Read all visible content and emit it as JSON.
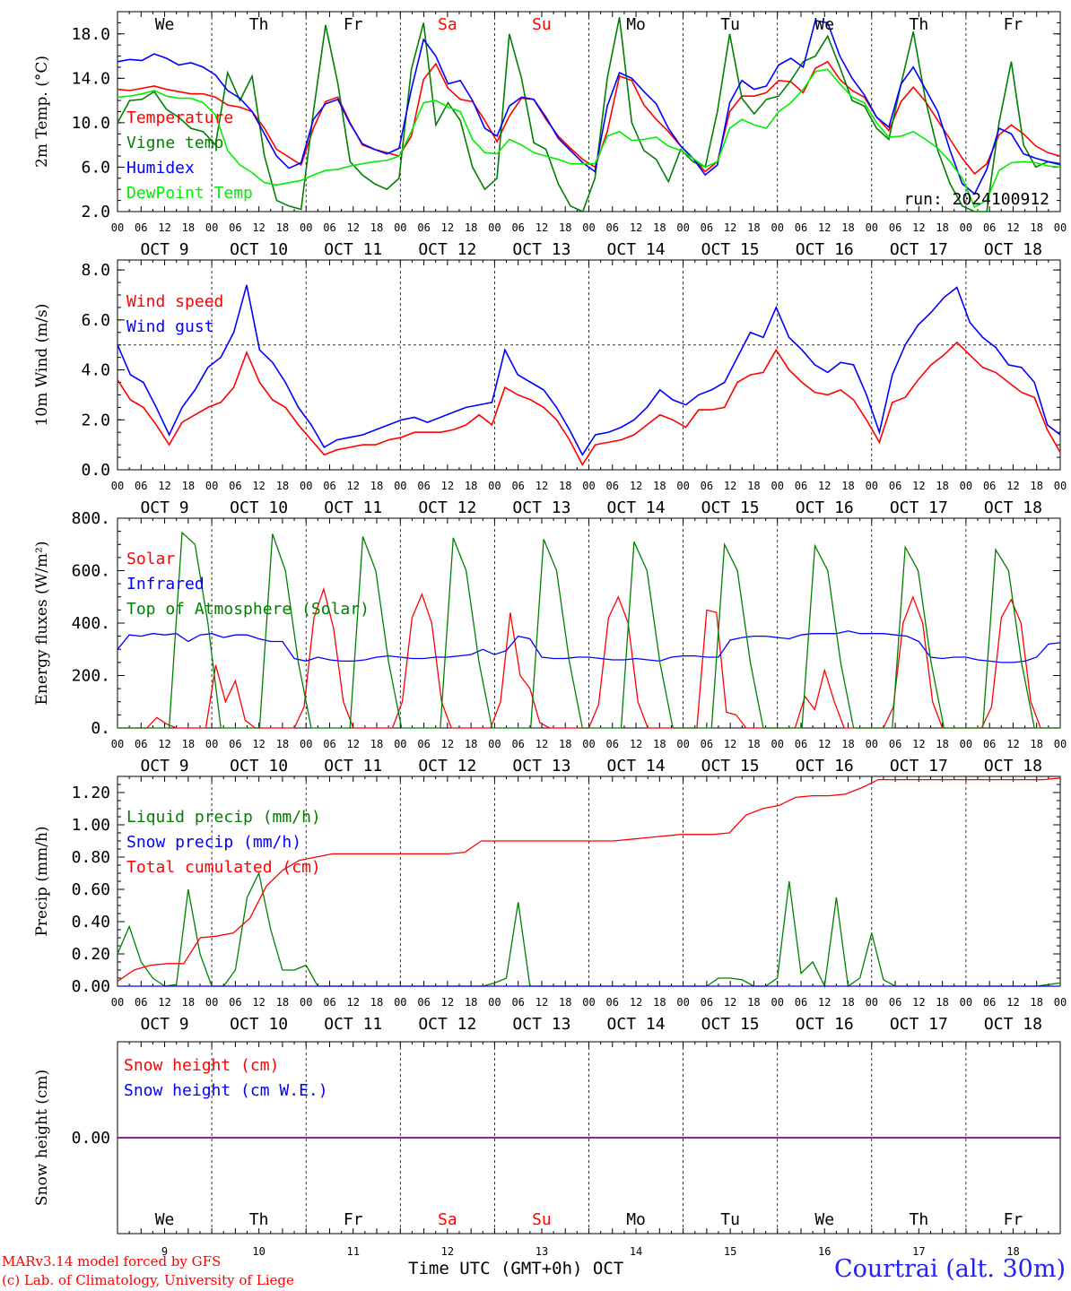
{
  "chart_data": [
    {
      "type": "line",
      "ylabel": "2m Temp. (°C)",
      "ylim": [
        2,
        20
      ],
      "yticks": [
        "2.0",
        "6.0",
        "10.0",
        "14.0",
        "18.0"
      ],
      "run_label": "run: 2024100912",
      "series": [
        {
          "name": "Temperature",
          "color": "#ff0000",
          "values": [
            13,
            12.9,
            13.1,
            13.3,
            13,
            12.8,
            12.6,
            12.6,
            12.3,
            11.6,
            11.4,
            11,
            9.5,
            7.6,
            6.9,
            6.2,
            9.5,
            11.9,
            12.3,
            10,
            8,
            7.6,
            7.3,
            7,
            8.8,
            13.9,
            15.3,
            13.1,
            12.1,
            11.9,
            10.2,
            8.3,
            10.6,
            12.2,
            12.1,
            10.3,
            8.8,
            7.7,
            6.7,
            6,
            9.2,
            14.2,
            13.8,
            11.6,
            10.3,
            9.2,
            7.9,
            6.8,
            5.6,
            6.5,
            11,
            12.4,
            12.4,
            12.7,
            13.8,
            13.7,
            12.7,
            14.9,
            15.5,
            13.9,
            12.9,
            12.3,
            10.5,
            9.3,
            11.9,
            13.2,
            11.9,
            10.2,
            8.5,
            6.8,
            5.4,
            6.3,
            8.9,
            9.8,
            9,
            7.9,
            7.3,
            7
          ]
        },
        {
          "name": "Vigne temp",
          "color": "#008000",
          "values": [
            10,
            12,
            12.1,
            12.8,
            11.2,
            10.5,
            9.5,
            9.2,
            8,
            14.5,
            12,
            14.2,
            7,
            3,
            2.5,
            2.2,
            11,
            18.8,
            13.5,
            6.5,
            5.3,
            4.5,
            4,
            5,
            14.8,
            19,
            9.8,
            11.8,
            10.2,
            6,
            4,
            5,
            18,
            14,
            8.2,
            7.6,
            4.5,
            2.5,
            2,
            5,
            14,
            19.5,
            10,
            7.5,
            6.7,
            4.7,
            7.6,
            6.5,
            6,
            11,
            18,
            12.2,
            10.8,
            12.1,
            12.4,
            13.8,
            15.5,
            16,
            17.8,
            15,
            12,
            11.5,
            9.5,
            8.5,
            13.5,
            18.2,
            12,
            7.5,
            4.5,
            2.5,
            2,
            2,
            10,
            15.5,
            8,
            6,
            6.5,
            6.2
          ]
        },
        {
          "name": "Humidex",
          "color": "#0000ff",
          "values": [
            15.5,
            15.7,
            15.6,
            16.2,
            15.8,
            15.2,
            15.4,
            15,
            14.3,
            12.9,
            12.2,
            11,
            9,
            7,
            5.9,
            6.4,
            10.3,
            11.7,
            12.1,
            9.9,
            8.1,
            7.6,
            7.2,
            7.7,
            13,
            17.5,
            16,
            13.5,
            13.8,
            12,
            9.5,
            8.8,
            11.5,
            12.3,
            12.1,
            10.5,
            8.6,
            7.5,
            6.4,
            5.6,
            11.5,
            14.5,
            14,
            12.8,
            11.7,
            9.5,
            7.9,
            6.8,
            5.3,
            6.2,
            11.8,
            13.8,
            13,
            13.3,
            15.2,
            15.8,
            15,
            19.2,
            19,
            16,
            14,
            12.5,
            10.5,
            9.6,
            13.5,
            15,
            13,
            11,
            7.5,
            4.5,
            3.6,
            5.8,
            9.5,
            9,
            7.2,
            6.8,
            6.5,
            6.3
          ]
        },
        {
          "name": "DewPoint Temp",
          "color": "#00ee00",
          "values": [
            12.3,
            12.4,
            12.6,
            12.9,
            12.4,
            12.2,
            12.2,
            11.8,
            10.7,
            7.5,
            6.2,
            5.5,
            4.6,
            4.4,
            4.6,
            4.8,
            5.3,
            5.7,
            5.8,
            6.1,
            6.3,
            6.5,
            6.6,
            7,
            9.2,
            11.8,
            12,
            11.4,
            11,
            8.5,
            7.3,
            7.2,
            8.5,
            8,
            7.3,
            7,
            6.7,
            6.3,
            6.3,
            6.3,
            8.8,
            9.2,
            8.4,
            8.5,
            8.7,
            7.9,
            7.5,
            6.8,
            6,
            6.5,
            9.5,
            10.3,
            9.8,
            9.5,
            11,
            11.8,
            13,
            14.6,
            14.8,
            13.5,
            12.3,
            11.8,
            10,
            8.7,
            8.8,
            9.2,
            8.5,
            7.7,
            6.5,
            5,
            2.4,
            3,
            5.7,
            6.4,
            6.5,
            6.4,
            6.1,
            6
          ]
        }
      ]
    },
    {
      "type": "line",
      "ylabel": "10m Wind (m/s)",
      "ylim": [
        0,
        8
      ],
      "yticks": [
        "0.0",
        "2.0",
        "4.0",
        "6.0",
        "8.0"
      ],
      "reference_line": 5,
      "series": [
        {
          "name": "Wind speed",
          "color": "#ff0000",
          "values": [
            3.6,
            2.8,
            2.5,
            1.8,
            1,
            1.9,
            2.2,
            2.5,
            2.7,
            3.3,
            4.7,
            3.5,
            2.8,
            2.5,
            1.8,
            1.2,
            0.6,
            0.8,
            0.9,
            1,
            1,
            1.2,
            1.3,
            1.5,
            1.5,
            1.5,
            1.6,
            1.8,
            2.2,
            1.8,
            3.3,
            3,
            2.8,
            2.5,
            2,
            1.2,
            0.2,
            1,
            1.1,
            1.2,
            1.4,
            1.8,
            2.2,
            2,
            1.7,
            2.4,
            2.4,
            2.5,
            3.5,
            3.8,
            3.9,
            4.8,
            4,
            3.5,
            3.1,
            3,
            3.2,
            2.8,
            2,
            1.1,
            2.7,
            2.9,
            3.6,
            4.2,
            4.6,
            5.1,
            4.6,
            4.1,
            3.9,
            3.5,
            3.1,
            2.9,
            1.6,
            0.7
          ]
        },
        {
          "name": "Wind gust",
          "color": "#0000ff",
          "values": [
            5,
            3.8,
            3.5,
            2.5,
            1.4,
            2.5,
            3.2,
            4.1,
            4.5,
            5.5,
            7.4,
            4.8,
            4.3,
            3.5,
            2.5,
            1.8,
            0.9,
            1.2,
            1.3,
            1.4,
            1.6,
            1.8,
            2,
            2.1,
            1.9,
            2.1,
            2.3,
            2.5,
            2.6,
            2.7,
            4.8,
            3.8,
            3.5,
            3.2,
            2.5,
            1.6,
            0.6,
            1.4,
            1.5,
            1.7,
            2,
            2.5,
            3.2,
            2.8,
            2.6,
            3,
            3.2,
            3.5,
            4.5,
            5.5,
            5.3,
            6.5,
            5.3,
            4.8,
            4.2,
            3.9,
            4.3,
            4.2,
            3,
            1.5,
            3.8,
            5,
            5.8,
            6.3,
            6.9,
            7.3,
            5.9,
            5.3,
            4.9,
            4.2,
            4.1,
            3.5,
            1.8,
            1.4
          ]
        }
      ]
    },
    {
      "type": "line",
      "ylabel": "Energy fluxes (W/m²)",
      "ylim": [
        0,
        800
      ],
      "yticks": [
        "0.",
        "200.",
        "400.",
        "600.",
        "800."
      ],
      "series": [
        {
          "name": "Solar",
          "color": "#ff0000",
          "values": [
            0,
            0,
            0,
            0,
            40,
            15,
            0,
            0,
            0,
            0,
            240,
            100,
            180,
            30,
            0,
            0,
            0,
            0,
            0,
            80,
            420,
            530,
            380,
            100,
            0,
            0,
            0,
            0,
            0,
            100,
            420,
            510,
            400,
            100,
            0,
            0,
            0,
            0,
            0,
            100,
            440,
            200,
            150,
            20,
            0,
            0,
            0,
            0,
            0,
            90,
            420,
            500,
            400,
            100,
            0,
            0,
            0,
            0,
            0,
            0,
            450,
            440,
            60,
            50,
            0,
            0,
            0,
            0,
            0,
            0,
            120,
            70,
            220,
            100,
            0,
            0,
            0,
            0,
            0,
            80,
            400,
            500,
            400,
            100,
            0,
            0,
            0,
            0,
            0,
            80,
            420,
            490,
            400,
            100,
            0,
            0,
            0
          ]
        },
        {
          "name": "Infrared",
          "color": "#0000ff",
          "values": [
            300,
            355,
            350,
            360,
            355,
            360,
            330,
            355,
            360,
            345,
            355,
            355,
            340,
            330,
            330,
            265,
            255,
            270,
            260,
            255,
            255,
            260,
            270,
            275,
            270,
            265,
            265,
            270,
            270,
            275,
            280,
            300,
            280,
            295,
            350,
            340,
            270,
            265,
            265,
            270,
            270,
            265,
            260,
            260,
            265,
            260,
            255,
            270,
            275,
            275,
            270,
            270,
            335,
            345,
            350,
            350,
            345,
            340,
            355,
            360,
            360,
            360,
            370,
            360,
            360,
            360,
            355,
            350,
            330,
            270,
            265,
            270,
            270,
            260,
            255,
            250,
            250,
            255,
            270,
            320,
            325
          ]
        },
        {
          "name": "Top of Atmosphere (Solar)",
          "color": "#008000",
          "values": [
            0,
            0,
            0,
            0,
            0,
            745,
            700,
            400,
            0,
            0,
            0,
            0,
            740,
            600,
            250,
            0,
            0,
            0,
            0,
            730,
            600,
            250,
            0,
            0,
            0,
            0,
            725,
            600,
            250,
            0,
            0,
            0,
            0,
            720,
            600,
            250,
            0,
            0,
            0,
            0,
            710,
            600,
            250,
            0,
            0,
            0,
            0,
            700,
            600,
            250,
            0,
            0,
            0,
            0,
            695,
            600,
            250,
            0,
            0,
            0,
            0,
            690,
            600,
            250,
            0,
            0,
            0,
            0,
            680,
            600,
            250,
            0,
            0,
            0
          ]
        }
      ]
    },
    {
      "type": "line",
      "ylabel": "Precip (mm/h)",
      "ylim": [
        0,
        1.3
      ],
      "yticks": [
        "0.00",
        "0.20",
        "0.40",
        "0.60",
        "0.80",
        "1.00",
        "1.20"
      ],
      "series": [
        {
          "name": "Liquid precip (mm/h)",
          "color": "#008000",
          "values": [
            0.2,
            0.37,
            0.15,
            0.05,
            0,
            0.01,
            0.6,
            0.2,
            0,
            0,
            0.1,
            0.55,
            0.7,
            0.35,
            0.1,
            0.1,
            0.13,
            0,
            0,
            0,
            0,
            0,
            0,
            0,
            0,
            0,
            0,
            0,
            0,
            0,
            0,
            0,
            0.02,
            0.05,
            0.52,
            0,
            0,
            0,
            0,
            0,
            0,
            0,
            0,
            0,
            0,
            0,
            0,
            0,
            0,
            0,
            0,
            0.05,
            0.05,
            0.04,
            0,
            0,
            0.05,
            0.65,
            0.08,
            0.15,
            0,
            0.55,
            0,
            0.05,
            0.33,
            0.04,
            0,
            0,
            0,
            0,
            0,
            0,
            0,
            0,
            0,
            0,
            0,
            0,
            0,
            0.01,
            0.02
          ]
        },
        {
          "name": "Snow precip (mm/h)",
          "color": "#0000ff",
          "values": [
            0
          ]
        },
        {
          "name": "Total cumulated (cm)",
          "color": "#ff0000",
          "values": [
            0.03,
            0.1,
            0.13,
            0.14,
            0.14,
            0.3,
            0.31,
            0.33,
            0.42,
            0.62,
            0.72,
            0.78,
            0.8,
            0.82,
            0.82,
            0.82,
            0.82,
            0.82,
            0.82,
            0.82,
            0.82,
            0.83,
            0.9,
            0.9,
            0.9,
            0.9,
            0.9,
            0.9,
            0.9,
            0.9,
            0.9,
            0.91,
            0.92,
            0.93,
            0.94,
            0.94,
            0.94,
            0.95,
            1.06,
            1.1,
            1.12,
            1.17,
            1.18,
            1.18,
            1.19,
            1.23,
            1.28,
            1.28,
            1.28,
            1.28,
            1.28,
            1.28,
            1.28,
            1.28,
            1.28,
            1.28,
            1.28,
            1.29
          ]
        }
      ]
    },
    {
      "type": "line",
      "ylabel": "Snow height (cm)",
      "yticks": [
        "0.00"
      ],
      "series": [
        {
          "name": "Snow height (cm)",
          "color": "#ff0000",
          "values": [
            0,
            0
          ]
        },
        {
          "name": "Snow height (cm W.E.)",
          "color": "#0000ff",
          "values": [
            0,
            0
          ]
        }
      ]
    }
  ],
  "days": [
    "We",
    "Th",
    "Fr",
    "Sa",
    "Su",
    "Mo",
    "Tu",
    "We",
    "Th",
    "Fr"
  ],
  "day_colors": [
    "#000000",
    "#000000",
    "#000000",
    "#ff0000",
    "#ff0000",
    "#000000",
    "#000000",
    "#000000",
    "#000000",
    "#000000"
  ],
  "dates": [
    "OCT  9",
    "OCT 10",
    "OCT 11",
    "OCT 12",
    "OCT 13",
    "OCT 14",
    "OCT 15",
    "OCT 16",
    "OCT 17",
    "OCT 18"
  ],
  "hour_ticks": [
    "00",
    "06",
    "12",
    "18"
  ],
  "day_numbers": [
    "9",
    "10",
    "11",
    "12",
    "13",
    "14",
    "15",
    "16",
    "17",
    "18"
  ],
  "footer": {
    "model": "MARv3.14 model forced by GFS",
    "copyright": "(c) Lab. of Climatology, University of Liege",
    "xlabel": "Time UTC (GMT+0h)",
    "month": "OCT",
    "station": "Courtrai (alt. 30m)"
  }
}
